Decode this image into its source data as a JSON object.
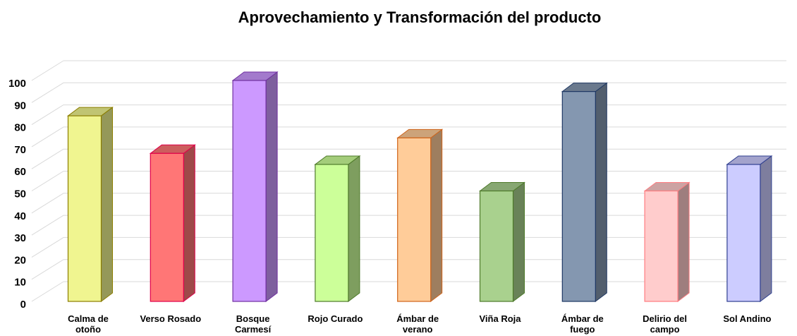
{
  "chart_data": {
    "type": "bar3d",
    "title": "Aprovechamiento y Transformación del producto",
    "categories": [
      "Calma de otoño",
      "Verso Rosado",
      "Bosque Carmesí",
      "Rojo Curado",
      "Ámbar de verano",
      "Viña Roja",
      "Ámbar de fuego",
      "Delirio del campo",
      "Sol Andino"
    ],
    "values": [
      84,
      67,
      100,
      62,
      74,
      50,
      95,
      50,
      62
    ],
    "colors": [
      "#f0f590",
      "#ff7676",
      "#cc99ff",
      "#ccff99",
      "#ffcc99",
      "#a9d18e",
      "#8497b0",
      "#ffcccc",
      "#ccccff"
    ],
    "edge_colors": [
      "#8b7d00",
      "#e0004a",
      "#7030a0",
      "#4e7a2a",
      "#d0641a",
      "#4e7a2a",
      "#1f3864",
      "#ff7c80",
      "#2f3f8f"
    ],
    "ylim": [
      0,
      100
    ],
    "yticks": [
      0,
      10,
      20,
      30,
      40,
      50,
      60,
      70,
      80,
      90,
      100
    ],
    "grid": true
  }
}
